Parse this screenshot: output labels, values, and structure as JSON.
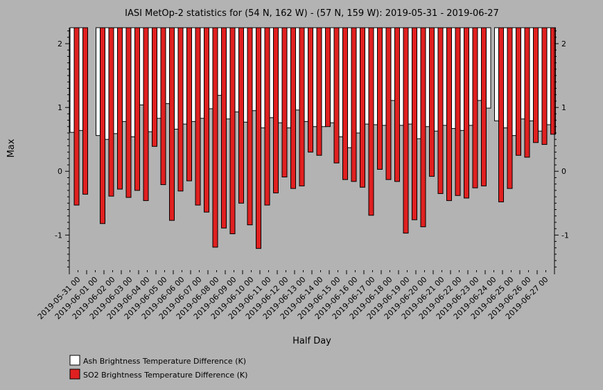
{
  "chart_data": {
    "type": "bar",
    "title": "IASI MetOp-2 statistics for (54 N, 162 W) - (57 N, 159 W): 2019-05-31 - 2019-06-27",
    "xlabel": "Half Day",
    "ylabel": "Max",
    "ylim": [
      -1.55,
      2.25
    ],
    "yticks": [
      -1,
      0,
      1,
      2
    ],
    "grid": false,
    "legend_position": "bottom-left",
    "tick_labels": [
      "2019-05-31 00",
      "2019-06-01 00",
      "2019-06-02 00",
      "2019-06-03 00",
      "2019-06-04 00",
      "2019-06-05 00",
      "2019-06-06 00",
      "2019-06-07 00",
      "2019-06-08 00",
      "2019-06-09 00",
      "2019-06-10 00",
      "2019-06-11 00",
      "2019-06-12 00",
      "2019-06-13 00",
      "2019-06-14 00",
      "2019-06-15 00",
      "2019-06-16 00",
      "2019-06-17 00",
      "2019-06-18 00",
      "2019-06-19 00",
      "2019-06-20 00",
      "2019-06-21 00",
      "2019-06-22 00",
      "2019-06-23 00",
      "2019-06-24 00",
      "2019-06-25 00",
      "2019-06-26 00",
      "2019-06-27 00"
    ],
    "series": [
      {
        "name": "Ash Brightness Temperature Difference (K)",
        "color": "#ffffff",
        "values": [
          0.61,
          0.64,
          null,
          0.56,
          0.5,
          0.59,
          0.78,
          0.54,
          1.04,
          0.62,
          0.83,
          1.06,
          0.66,
          0.74,
          0.78,
          0.83,
          0.98,
          1.19,
          0.82,
          0.93,
          0.77,
          0.95,
          0.68,
          0.84,
          0.76,
          0.68,
          0.96,
          0.78,
          0.7,
          0.7,
          0.76,
          0.54,
          0.37,
          0.6,
          0.74,
          0.73,
          0.72,
          1.11,
          0.72,
          0.74,
          0.51,
          0.7,
          0.63,
          0.72,
          0.67,
          0.64,
          0.72,
          1.11,
          0.99,
          0.79,
          0.68,
          0.56,
          0.82,
          0.79,
          0.63,
          0.73
        ]
      },
      {
        "name": "SO2 Brightness Temperature Difference (K)",
        "color": "#e02020",
        "values": [
          -0.53,
          -0.36,
          null,
          -0.82,
          -0.39,
          -0.28,
          -0.41,
          -0.3,
          -0.46,
          0.39,
          -0.21,
          -0.77,
          -0.31,
          -0.15,
          -0.53,
          -0.64,
          -1.19,
          -0.89,
          -0.98,
          -0.5,
          -0.84,
          -1.21,
          -0.53,
          -0.34,
          -0.09,
          -0.27,
          -0.23,
          0.3,
          0.25,
          0.7,
          0.13,
          -0.13,
          -0.16,
          -0.25,
          -0.69,
          0.03,
          -0.13,
          -0.16,
          -0.97,
          -0.76,
          -0.87,
          -0.08,
          -0.35,
          -0.46,
          -0.38,
          -0.42,
          -0.26,
          -0.23,
          2.25,
          -0.48,
          -0.27,
          0.25,
          0.22,
          0.45,
          0.42,
          0.58
        ]
      }
    ]
  }
}
